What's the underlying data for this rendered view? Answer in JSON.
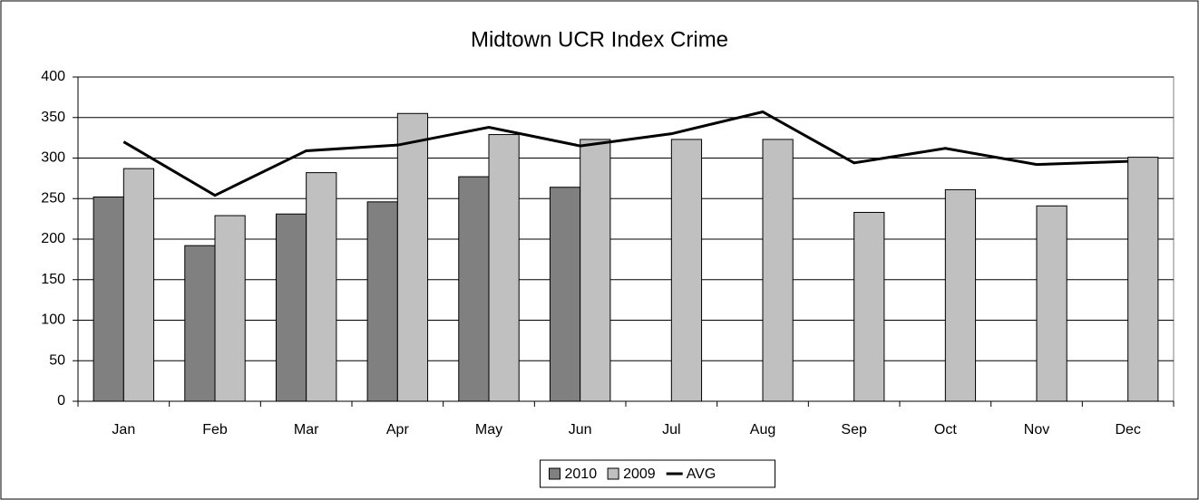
{
  "chart_data": {
    "type": "combo",
    "title": "Midtown UCR Index Crime",
    "categories": [
      "Jan",
      "Feb",
      "Mar",
      "Apr",
      "May",
      "Jun",
      "Jul",
      "Aug",
      "Sep",
      "Oct",
      "Nov",
      "Dec"
    ],
    "series": [
      {
        "name": "2010",
        "type": "bar",
        "color": "#808080",
        "values": [
          252,
          192,
          231,
          246,
          277,
          264,
          null,
          null,
          null,
          null,
          null,
          null
        ]
      },
      {
        "name": "2009",
        "type": "bar",
        "color": "#c0c0c0",
        "values": [
          287,
          229,
          282,
          355,
          329,
          323,
          323,
          323,
          233,
          261,
          241,
          301
        ]
      },
      {
        "name": "AVG",
        "type": "line",
        "color": "#000000",
        "values": [
          320,
          254,
          309,
          316,
          338,
          315,
          330,
          357,
          294,
          312,
          292,
          296
        ]
      }
    ],
    "ylim": [
      0,
      400
    ],
    "yticks": [
      0,
      50,
      100,
      150,
      200,
      250,
      300,
      350,
      400
    ],
    "grid": true,
    "legend": "bottom"
  }
}
